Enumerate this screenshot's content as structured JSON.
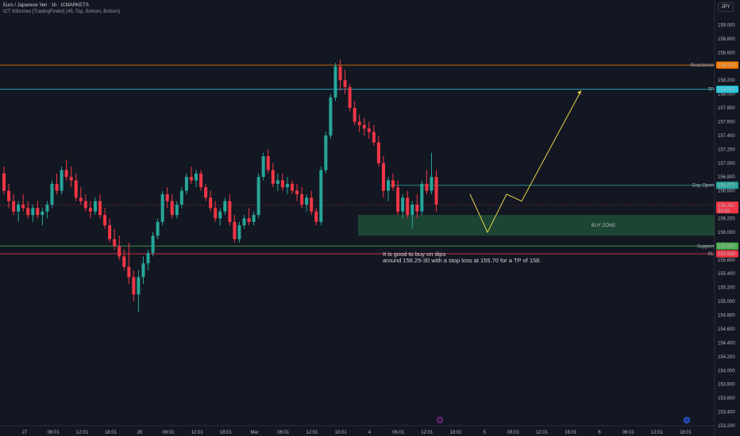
{
  "header": {
    "symbol_line": "Euro / Japanese Yen · 1h · ICMARKETS",
    "indicator_line": "ICT Killzones [TradingFinder] (45, Top, Bottom, Bottom)"
  },
  "currency_button": "JPY",
  "colors": {
    "background": "#131722",
    "up_candle": "#26a69a",
    "down_candle": "#f23645",
    "resistance": "#f57c00",
    "tp": "#26c6da",
    "day_open": "#26a69a",
    "support": "#4caf50",
    "sl": "#f23645",
    "buy_zone": "#1e4d36",
    "projection": "#e5d349"
  },
  "chart_data": {
    "type": "candlestick",
    "symbol": "EURJPY",
    "timeframe": "1h",
    "ylim": [
      153.2,
      159.2
    ],
    "y_ticks": [
      "159.000",
      "158.800",
      "158.600",
      "158.400",
      "158.200",
      "158.000",
      "157.800",
      "157.600",
      "157.400",
      "157.200",
      "157.000",
      "156.800",
      "156.600",
      "156.400",
      "156.200",
      "156.000",
      "155.800",
      "155.600",
      "155.400",
      "155.200",
      "155.000",
      "154.800",
      "154.600",
      "154.400",
      "154.200",
      "154.000",
      "153.800",
      "153.600",
      "153.400",
      "153.200"
    ],
    "x_ticks": [
      "27",
      "06:01",
      "12:01",
      "18:01",
      "28",
      "06:01",
      "12:01",
      "18:01",
      "Mar",
      "06:01",
      "12:01",
      "18:01",
      "4",
      "06:01",
      "12:01",
      "18:01",
      "5",
      "06:01",
      "12:01",
      "18:01",
      "6",
      "06:01",
      "12:01",
      "18:01"
    ],
    "candles": [
      [
        156.85,
        156.95,
        156.55,
        156.6
      ],
      [
        156.6,
        156.7,
        156.35,
        156.45
      ],
      [
        156.45,
        156.55,
        156.25,
        156.3
      ],
      [
        156.3,
        156.45,
        156.15,
        156.4
      ],
      [
        156.4,
        156.55,
        156.3,
        156.35
      ],
      [
        156.35,
        156.45,
        156.2,
        156.25
      ],
      [
        156.25,
        156.4,
        156.15,
        156.35
      ],
      [
        156.35,
        156.45,
        156.2,
        156.25
      ],
      [
        156.25,
        156.35,
        156.1,
        156.3
      ],
      [
        156.3,
        156.45,
        156.2,
        156.4
      ],
      [
        156.4,
        156.75,
        156.35,
        156.7
      ],
      [
        156.7,
        156.85,
        156.55,
        156.6
      ],
      [
        156.6,
        156.95,
        156.55,
        156.9
      ],
      [
        156.9,
        157.05,
        156.75,
        156.8
      ],
      [
        156.8,
        156.95,
        156.65,
        156.75
      ],
      [
        156.75,
        156.85,
        156.45,
        156.5
      ],
      [
        156.5,
        156.65,
        156.4,
        156.45
      ],
      [
        156.45,
        156.55,
        156.3,
        156.35
      ],
      [
        156.35,
        156.45,
        156.2,
        156.3
      ],
      [
        156.3,
        156.5,
        156.25,
        156.45
      ],
      [
        156.45,
        156.55,
        156.2,
        156.25
      ],
      [
        156.25,
        156.35,
        156.05,
        156.1
      ],
      [
        156.1,
        156.2,
        155.85,
        155.9
      ],
      [
        155.9,
        156.05,
        155.75,
        155.8
      ],
      [
        155.8,
        155.95,
        155.6,
        155.65
      ],
      [
        155.65,
        155.75,
        155.45,
        155.5
      ],
      [
        155.5,
        155.85,
        155.25,
        155.35
      ],
      [
        155.35,
        155.45,
        155.0,
        155.1
      ],
      [
        155.1,
        155.45,
        154.85,
        155.35
      ],
      [
        155.35,
        155.65,
        155.25,
        155.55
      ],
      [
        155.55,
        155.75,
        155.45,
        155.7
      ],
      [
        155.7,
        156.0,
        155.65,
        155.95
      ],
      [
        155.95,
        156.2,
        155.9,
        156.15
      ],
      [
        156.15,
        156.6,
        156.1,
        156.55
      ],
      [
        156.55,
        156.65,
        156.35,
        156.45
      ],
      [
        156.45,
        156.55,
        156.2,
        156.25
      ],
      [
        156.25,
        156.45,
        156.2,
        156.4
      ],
      [
        156.4,
        156.65,
        156.35,
        156.6
      ],
      [
        156.6,
        156.85,
        156.55,
        156.8
      ],
      [
        156.8,
        156.95,
        156.7,
        156.75
      ],
      [
        156.75,
        156.9,
        156.65,
        156.85
      ],
      [
        156.85,
        156.9,
        156.6,
        156.65
      ],
      [
        156.65,
        156.7,
        156.45,
        156.5
      ],
      [
        156.5,
        156.6,
        156.3,
        156.35
      ],
      [
        156.35,
        156.45,
        156.15,
        156.2
      ],
      [
        156.2,
        156.35,
        156.1,
        156.3
      ],
      [
        156.3,
        156.5,
        156.25,
        156.45
      ],
      [
        156.45,
        156.55,
        156.1,
        156.15
      ],
      [
        156.15,
        156.25,
        155.85,
        155.9
      ],
      [
        155.9,
        156.15,
        155.85,
        156.1
      ],
      [
        156.1,
        156.25,
        156.05,
        156.2
      ],
      [
        156.2,
        156.35,
        156.1,
        156.15
      ],
      [
        156.15,
        156.3,
        156.1,
        156.25
      ],
      [
        156.25,
        156.85,
        156.2,
        156.8
      ],
      [
        156.8,
        157.15,
        156.75,
        157.1
      ],
      [
        157.1,
        157.2,
        156.85,
        156.9
      ],
      [
        156.9,
        157.0,
        156.65,
        156.7
      ],
      [
        156.7,
        156.85,
        156.6,
        156.75
      ],
      [
        156.75,
        156.85,
        156.6,
        156.65
      ],
      [
        156.65,
        156.8,
        156.55,
        156.7
      ],
      [
        156.7,
        156.75,
        156.55,
        156.6
      ],
      [
        156.6,
        156.7,
        156.45,
        156.55
      ],
      [
        156.55,
        156.65,
        156.35,
        156.4
      ],
      [
        156.4,
        156.55,
        156.3,
        156.5
      ],
      [
        156.5,
        156.6,
        156.25,
        156.3
      ],
      [
        156.3,
        156.35,
        156.1,
        156.15
      ],
      [
        156.15,
        156.95,
        156.1,
        156.9
      ],
      [
        156.9,
        157.45,
        156.85,
        157.4
      ],
      [
        157.4,
        158.0,
        157.35,
        157.95
      ],
      [
        157.95,
        158.45,
        157.9,
        158.4
      ],
      [
        158.4,
        158.5,
        158.05,
        158.2
      ],
      [
        158.2,
        158.35,
        158.0,
        158.1
      ],
      [
        158.1,
        158.15,
        157.75,
        157.8
      ],
      [
        157.8,
        157.9,
        157.55,
        157.6
      ],
      [
        157.6,
        157.7,
        157.45,
        157.55
      ],
      [
        157.55,
        157.65,
        157.4,
        157.5
      ],
      [
        157.5,
        157.6,
        157.35,
        157.45
      ],
      [
        157.45,
        157.55,
        157.25,
        157.3
      ],
      [
        157.3,
        157.4,
        156.95,
        157.0
      ],
      [
        157.0,
        157.1,
        156.5,
        156.6
      ],
      [
        156.6,
        156.8,
        156.45,
        156.75
      ],
      [
        156.75,
        156.85,
        156.6,
        156.65
      ],
      [
        156.65,
        156.75,
        156.25,
        156.3
      ],
      [
        156.3,
        156.55,
        156.2,
        156.5
      ],
      [
        156.5,
        156.6,
        156.2,
        156.25
      ],
      [
        156.25,
        156.45,
        156.05,
        156.4
      ],
      [
        156.4,
        156.55,
        156.2,
        156.3
      ],
      [
        156.3,
        156.75,
        156.25,
        156.7
      ],
      [
        156.7,
        156.9,
        156.55,
        156.6
      ],
      [
        156.6,
        157.15,
        156.55,
        156.8
      ],
      [
        156.8,
        156.9,
        156.3,
        156.4
      ]
    ],
    "levels": [
      {
        "name": "Resistance",
        "value": 158.418,
        "label": "158.418"
      },
      {
        "name": "TP",
        "value": 158.069,
        "label": "158.069"
      },
      {
        "name": "Day Open",
        "value": 156.679,
        "label": "156.679"
      },
      {
        "name": "Support",
        "value": 155.8,
        "label": "155.800"
      },
      {
        "name": "SL",
        "value": 155.688,
        "label": "155.688"
      }
    ],
    "current_price": {
      "value": 156.392,
      "label": "156.392",
      "countdown": "39:56"
    },
    "buy_zone": {
      "label": "BUY ZONE",
      "top": 156.25,
      "bottom": 155.95
    },
    "projection": [
      [
        156.55,
        0
      ],
      [
        156.0,
        0
      ],
      [
        156.55,
        0
      ],
      [
        156.45,
        0
      ],
      [
        158.05,
        0
      ]
    ],
    "annotation": {
      "line1": "It is good to buy on dips",
      "line2": "around 156.25-30 with a stop loss at 155.70 for a TP of 158."
    }
  }
}
